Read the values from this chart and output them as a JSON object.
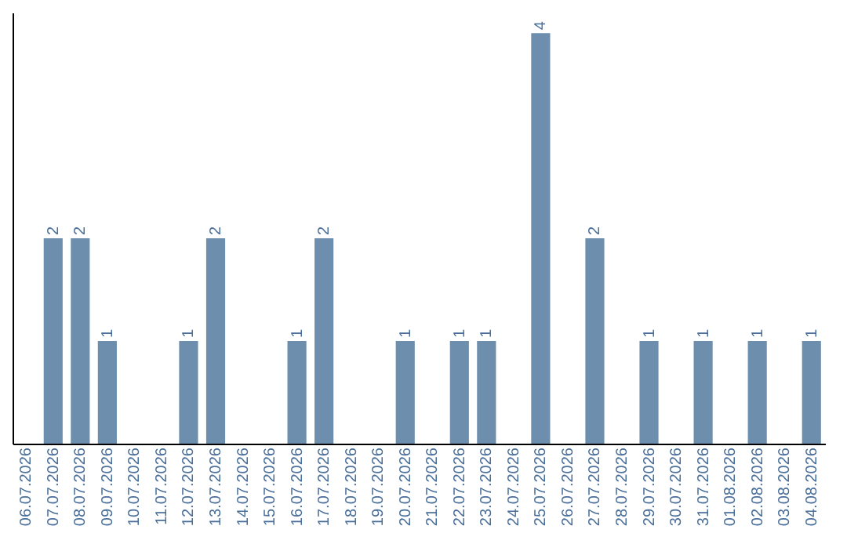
{
  "chart_data": {
    "type": "bar",
    "categories": [
      "06.07.2026",
      "07.07.2026",
      "08.07.2026",
      "09.07.2026",
      "10.07.2026",
      "11.07.2026",
      "12.07.2026",
      "13.07.2026",
      "14.07.2026",
      "15.07.2026",
      "16.07.2026",
      "17.07.2026",
      "18.07.2026",
      "19.07.2026",
      "20.07.2026",
      "21.07.2026",
      "22.07.2026",
      "23.07.2026",
      "24.07.2026",
      "25.07.2026",
      "26.07.2026",
      "27.07.2026",
      "28.07.2026",
      "29.07.2026",
      "30.07.2026",
      "31.07.2026",
      "01.08.2026",
      "02.08.2026",
      "03.08.2026",
      "04.08.2026"
    ],
    "values": [
      0,
      2,
      2,
      1,
      0,
      0,
      1,
      2,
      0,
      0,
      1,
      2,
      0,
      0,
      1,
      0,
      1,
      1,
      0,
      4,
      0,
      2,
      0,
      1,
      0,
      1,
      0,
      1,
      0,
      1
    ],
    "value_labels": [
      null,
      "2",
      "2",
      "1",
      null,
      null,
      "1",
      "2",
      null,
      null,
      "1",
      "2",
      null,
      null,
      "1",
      null,
      "1",
      "1",
      null,
      "4",
      null,
      "2",
      null,
      "1",
      null,
      "1",
      null,
      "1",
      null,
      "1"
    ],
    "color": "#6d8fad",
    "ylim": [
      0,
      4.2
    ],
    "tick_labels": "x"
  }
}
